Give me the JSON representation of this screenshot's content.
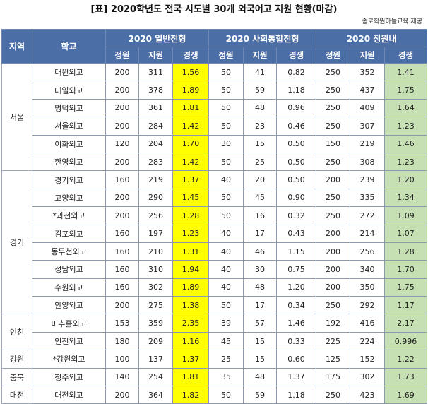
{
  "title": "[표] 2020학년도 전국 시도별 30개 외국어고 지원 현황(마감)",
  "source": "종로학원하늘교육 제공",
  "headers": {
    "region": "지역",
    "school": "학교",
    "groups": [
      "2020 일반전형",
      "2020 사회통합전형",
      "2020 정원내"
    ],
    "sub": [
      "정원",
      "지원",
      "경쟁"
    ]
  },
  "regions": [
    {
      "name": "서울",
      "rows": [
        {
          "school": "대원외고",
          "g": [
            "200",
            "311",
            "1.56"
          ],
          "s": [
            "50",
            "41",
            "0.82"
          ],
          "t": [
            "250",
            "352",
            "1.41"
          ]
        },
        {
          "school": "대일외고",
          "g": [
            "200",
            "378",
            "1.89"
          ],
          "s": [
            "50",
            "59",
            "1.18"
          ],
          "t": [
            "250",
            "437",
            "1.75"
          ]
        },
        {
          "school": "명덕외고",
          "g": [
            "200",
            "361",
            "1.81"
          ],
          "s": [
            "50",
            "48",
            "0.96"
          ],
          "t": [
            "250",
            "409",
            "1.64"
          ]
        },
        {
          "school": "서울외고",
          "g": [
            "200",
            "284",
            "1.42"
          ],
          "s": [
            "50",
            "23",
            "0.46"
          ],
          "t": [
            "250",
            "307",
            "1.23"
          ]
        },
        {
          "school": "이화외고",
          "g": [
            "120",
            "204",
            "1.70"
          ],
          "s": [
            "30",
            "15",
            "0.50"
          ],
          "t": [
            "150",
            "219",
            "1.46"
          ]
        },
        {
          "school": "한영외고",
          "g": [
            "200",
            "283",
            "1.42"
          ],
          "s": [
            "50",
            "25",
            "0.50"
          ],
          "t": [
            "250",
            "308",
            "1.23"
          ]
        }
      ]
    },
    {
      "name": "경기",
      "rows": [
        {
          "school": "경기외고",
          "g": [
            "160",
            "219",
            "1.37"
          ],
          "s": [
            "40",
            "20",
            "0.50"
          ],
          "t": [
            "200",
            "239",
            "1.20"
          ]
        },
        {
          "school": "고양외고",
          "g": [
            "200",
            "290",
            "1.45"
          ],
          "s": [
            "50",
            "45",
            "0.90"
          ],
          "t": [
            "250",
            "335",
            "1.34"
          ]
        },
        {
          "school": "*과천외고",
          "g": [
            "200",
            "256",
            "1.28"
          ],
          "s": [
            "50",
            "16",
            "0.32"
          ],
          "t": [
            "250",
            "272",
            "1.09"
          ]
        },
        {
          "school": "김포외고",
          "g": [
            "160",
            "197",
            "1.23"
          ],
          "s": [
            "40",
            "17",
            "0.43"
          ],
          "t": [
            "200",
            "214",
            "1.07"
          ]
        },
        {
          "school": "동두천외고",
          "g": [
            "160",
            "210",
            "1.31"
          ],
          "s": [
            "40",
            "46",
            "1.15"
          ],
          "t": [
            "200",
            "256",
            "1.28"
          ]
        },
        {
          "school": "성남외고",
          "g": [
            "160",
            "310",
            "1.94"
          ],
          "s": [
            "40",
            "30",
            "0.75"
          ],
          "t": [
            "200",
            "340",
            "1.70"
          ]
        },
        {
          "school": "수원외고",
          "g": [
            "160",
            "302",
            "1.89"
          ],
          "s": [
            "40",
            "48",
            "1.20"
          ],
          "t": [
            "200",
            "350",
            "1.75"
          ]
        },
        {
          "school": "안양외고",
          "g": [
            "200",
            "275",
            "1.38"
          ],
          "s": [
            "50",
            "17",
            "0.34"
          ],
          "t": [
            "250",
            "292",
            "1.17"
          ]
        }
      ]
    },
    {
      "name": "인천",
      "rows": [
        {
          "school": "미추홀외고",
          "g": [
            "153",
            "359",
            "2.35"
          ],
          "s": [
            "39",
            "57",
            "1.46"
          ],
          "t": [
            "192",
            "416",
            "2.17"
          ]
        },
        {
          "school": "인천외고",
          "g": [
            "180",
            "209",
            "1.16"
          ],
          "s": [
            "45",
            "15",
            "0.33"
          ],
          "t": [
            "225",
            "224",
            "0.996"
          ]
        }
      ]
    },
    {
      "name": "강원",
      "rows": [
        {
          "school": "*강원외고",
          "g": [
            "100",
            "137",
            "1.37"
          ],
          "s": [
            "25",
            "15",
            "0.60"
          ],
          "t": [
            "125",
            "152",
            "1.22"
          ]
        }
      ]
    },
    {
      "name": "충북",
      "rows": [
        {
          "school": "청주외고",
          "g": [
            "140",
            "254",
            "1.81"
          ],
          "s": [
            "35",
            "48",
            "1.37"
          ],
          "t": [
            "175",
            "302",
            "1.73"
          ]
        }
      ]
    },
    {
      "name": "대전",
      "rows": [
        {
          "school": "대전외고",
          "g": [
            "200",
            "364",
            "1.82"
          ],
          "s": [
            "50",
            "59",
            "1.18"
          ],
          "t": [
            "250",
            "423",
            "1.69"
          ]
        }
      ]
    }
  ],
  "colors": {
    "header": "#4c6ea7",
    "general_competition": "#ffff00",
    "total_competition": "#c6e0b4"
  }
}
